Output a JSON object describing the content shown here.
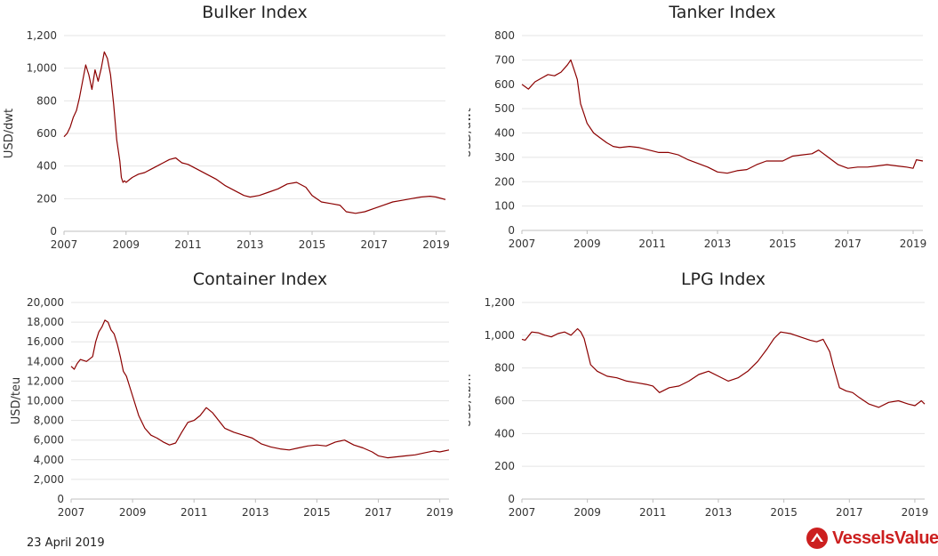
{
  "footer": {
    "date": "23 April 2019"
  },
  "brand": {
    "name": "VesselsValue",
    "color": "#cc1f1f"
  },
  "line_color": "#8b0000",
  "chart_data": [
    {
      "type": "line",
      "title": "Bulker Index",
      "ylabel": "USD/dwt",
      "xlim": [
        2007,
        2019.3
      ],
      "ylim": [
        0,
        1200
      ],
      "xticks": [
        "2007",
        "2009",
        "2011",
        "2013",
        "2015",
        "2017",
        "2019"
      ],
      "yticks": [
        "0",
        "200",
        "400",
        "600",
        "800",
        "1,000",
        "1,200"
      ],
      "grid": true,
      "series": [
        {
          "x": [
            2007.0,
            2007.1,
            2007.2,
            2007.3,
            2007.4,
            2007.5,
            2007.6,
            2007.7,
            2007.8,
            2007.9,
            2008.0,
            2008.1,
            2008.2,
            2008.3,
            2008.4,
            2008.5,
            2008.6,
            2008.7,
            2008.8,
            2008.85,
            2008.9,
            2008.95,
            2009.0,
            2009.2,
            2009.4,
            2009.6,
            2009.8,
            2010.0,
            2010.2,
            2010.4,
            2010.6,
            2010.8,
            2011.0,
            2011.3,
            2011.6,
            2011.9,
            2012.2,
            2012.5,
            2012.8,
            2013.0,
            2013.3,
            2013.6,
            2013.9,
            2014.2,
            2014.5,
            2014.8,
            2015.0,
            2015.3,
            2015.6,
            2015.9,
            2016.1,
            2016.4,
            2016.7,
            2017.0,
            2017.3,
            2017.6,
            2017.9,
            2018.2,
            2018.5,
            2018.8,
            2019.0,
            2019.3
          ],
          "y": [
            580,
            600,
            640,
            700,
            740,
            820,
            920,
            1020,
            960,
            870,
            990,
            920,
            1000,
            1100,
            1060,
            960,
            780,
            560,
            430,
            330,
            300,
            310,
            300,
            330,
            350,
            360,
            380,
            400,
            420,
            440,
            450,
            420,
            410,
            380,
            350,
            320,
            280,
            250,
            220,
            210,
            220,
            240,
            260,
            290,
            300,
            270,
            220,
            180,
            170,
            160,
            120,
            110,
            120,
            140,
            160,
            180,
            190,
            200,
            210,
            215,
            210,
            195
          ]
        }
      ]
    },
    {
      "type": "line",
      "title": "Tanker Index",
      "ylabel": "USD/dwt",
      "xlim": [
        2007,
        2019.3
      ],
      "ylim": [
        0,
        800
      ],
      "xticks": [
        "2007",
        "2009",
        "2011",
        "2013",
        "2015",
        "2017",
        "2019"
      ],
      "yticks": [
        "0",
        "100",
        "200",
        "300",
        "400",
        "500",
        "600",
        "700",
        "800"
      ],
      "grid": true,
      "series": [
        {
          "x": [
            2007.0,
            2007.1,
            2007.2,
            2007.4,
            2007.6,
            2007.8,
            2008.0,
            2008.2,
            2008.4,
            2008.5,
            2008.6,
            2008.7,
            2008.8,
            2008.9,
            2009.0,
            2009.2,
            2009.4,
            2009.6,
            2009.8,
            2010.0,
            2010.3,
            2010.6,
            2010.9,
            2011.2,
            2011.5,
            2011.8,
            2012.1,
            2012.4,
            2012.7,
            2013.0,
            2013.3,
            2013.6,
            2013.9,
            2014.2,
            2014.5,
            2014.8,
            2015.0,
            2015.3,
            2015.6,
            2015.9,
            2016.1,
            2016.4,
            2016.7,
            2017.0,
            2017.3,
            2017.6,
            2017.9,
            2018.2,
            2018.5,
            2018.8,
            2019.0,
            2019.1,
            2019.3
          ],
          "y": [
            600,
            590,
            580,
            610,
            625,
            640,
            635,
            650,
            680,
            700,
            660,
            620,
            520,
            480,
            440,
            400,
            380,
            360,
            345,
            340,
            345,
            340,
            330,
            320,
            320,
            310,
            290,
            275,
            260,
            240,
            235,
            245,
            250,
            270,
            285,
            285,
            285,
            305,
            310,
            315,
            330,
            300,
            270,
            255,
            260,
            260,
            265,
            270,
            265,
            260,
            255,
            290,
            285
          ]
        }
      ]
    },
    {
      "type": "line",
      "title": "Container Index",
      "ylabel": "USD/teu",
      "xlim": [
        2007,
        2019.3
      ],
      "ylim": [
        0,
        20000
      ],
      "xticks": [
        "2007",
        "2009",
        "2011",
        "2013",
        "2015",
        "2017",
        "2019"
      ],
      "yticks": [
        "0",
        "2,000",
        "4,000",
        "6,000",
        "8,000",
        "10,000",
        "12,000",
        "14,000",
        "16,000",
        "18,000",
        "20,000"
      ],
      "grid": true,
      "series": [
        {
          "x": [
            2007.0,
            2007.1,
            2007.2,
            2007.3,
            2007.5,
            2007.7,
            2007.8,
            2007.9,
            2008.0,
            2008.1,
            2008.2,
            2008.3,
            2008.4,
            2008.5,
            2008.6,
            2008.7,
            2008.8,
            2009.0,
            2009.2,
            2009.4,
            2009.6,
            2009.8,
            2010.0,
            2010.2,
            2010.4,
            2010.6,
            2010.8,
            2011.0,
            2011.2,
            2011.4,
            2011.6,
            2011.8,
            2012.0,
            2012.3,
            2012.6,
            2012.9,
            2013.2,
            2013.5,
            2013.8,
            2014.1,
            2014.4,
            2014.7,
            2015.0,
            2015.3,
            2015.6,
            2015.9,
            2016.2,
            2016.5,
            2016.8,
            2017.0,
            2017.3,
            2017.6,
            2017.9,
            2018.2,
            2018.5,
            2018.8,
            2019.0,
            2019.3
          ],
          "y": [
            13500,
            13200,
            13800,
            14200,
            14000,
            14500,
            16000,
            17000,
            17500,
            18200,
            18000,
            17200,
            16800,
            15800,
            14500,
            13000,
            12500,
            10500,
            8500,
            7200,
            6500,
            6200,
            5800,
            5500,
            5700,
            6800,
            7800,
            8000,
            8500,
            9300,
            8800,
            8000,
            7200,
            6800,
            6500,
            6200,
            5600,
            5300,
            5100,
            5000,
            5200,
            5400,
            5500,
            5400,
            5800,
            6000,
            5500,
            5200,
            4800,
            4400,
            4200,
            4300,
            4400,
            4500,
            4700,
            4900,
            4800,
            5000
          ]
        }
      ]
    },
    {
      "type": "line",
      "title": "LPG Index",
      "ylabel": "USD/cbm",
      "xlim": [
        2007,
        2019.3
      ],
      "ylim": [
        0,
        1200
      ],
      "xticks": [
        "2007",
        "2009",
        "2011",
        "2013",
        "2015",
        "2017",
        "2019"
      ],
      "yticks": [
        "0",
        "200",
        "400",
        "600",
        "800",
        "1,000",
        "1,200"
      ],
      "grid": true,
      "series": [
        {
          "x": [
            2007.0,
            2007.1,
            2007.3,
            2007.5,
            2007.7,
            2007.9,
            2008.1,
            2008.3,
            2008.5,
            2008.7,
            2008.8,
            2008.9,
            2009.0,
            2009.1,
            2009.3,
            2009.6,
            2009.9,
            2010.2,
            2010.5,
            2010.8,
            2011.0,
            2011.2,
            2011.5,
            2011.8,
            2012.1,
            2012.4,
            2012.7,
            2013.0,
            2013.3,
            2013.6,
            2013.9,
            2014.2,
            2014.5,
            2014.7,
            2014.9,
            2015.2,
            2015.5,
            2015.8,
            2016.0,
            2016.2,
            2016.4,
            2016.5,
            2016.7,
            2016.9,
            2017.1,
            2017.3,
            2017.6,
            2017.9,
            2018.2,
            2018.5,
            2018.8,
            2019.0,
            2019.2,
            2019.3
          ],
          "y": [
            975,
            970,
            1020,
            1015,
            1000,
            990,
            1010,
            1020,
            1000,
            1040,
            1020,
            980,
            900,
            820,
            780,
            750,
            740,
            720,
            710,
            700,
            690,
            650,
            680,
            690,
            720,
            760,
            780,
            750,
            720,
            740,
            780,
            840,
            920,
            980,
            1020,
            1010,
            990,
            970,
            960,
            975,
            900,
            820,
            680,
            660,
            650,
            620,
            580,
            560,
            590,
            600,
            580,
            570,
            600,
            580
          ]
        }
      ]
    }
  ]
}
